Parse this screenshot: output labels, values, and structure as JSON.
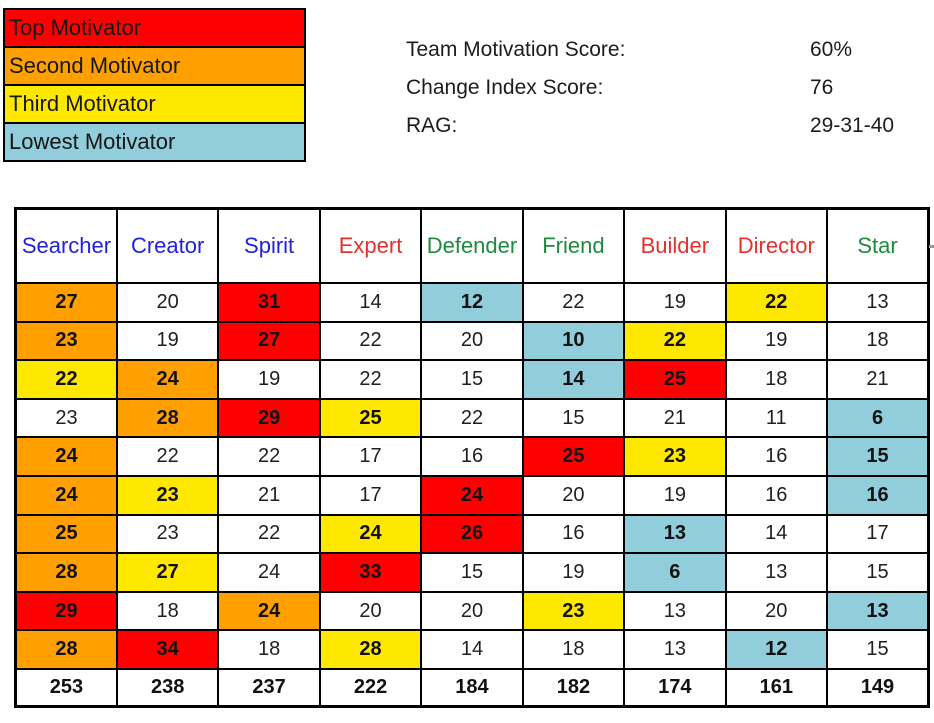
{
  "legend": {
    "items": [
      {
        "label": "Top Motivator",
        "color": "#FF0000"
      },
      {
        "label": "Second Motivator",
        "color": "#FFA000"
      },
      {
        "label": "Third Motivator",
        "color": "#FFE800"
      },
      {
        "label": "Lowest Motivator",
        "color": "#92CDDC"
      }
    ]
  },
  "scores": {
    "lines": [
      {
        "label": "Team Motivation Score:",
        "value": "60%"
      },
      {
        "label": "Change Index Score:",
        "value": "76"
      },
      {
        "label": "RAG:",
        "value": "29-31-40"
      }
    ]
  },
  "table": {
    "columns": [
      {
        "label": "Searcher",
        "color": "#2222DD"
      },
      {
        "label": "Creator",
        "color": "#2222DD"
      },
      {
        "label": "Spirit",
        "color": "#2222DD"
      },
      {
        "label": "Expert",
        "color": "#E23229"
      },
      {
        "label": "Defender",
        "color": "#1E8A3C"
      },
      {
        "label": "Friend",
        "color": "#1E8A3C"
      },
      {
        "label": "Builder",
        "color": "#E23229"
      },
      {
        "label": "Director",
        "color": "#E23229"
      },
      {
        "label": "Star",
        "color": "#1E8A3C"
      }
    ],
    "highlight_colors": {
      "red": "#FF0000",
      "orange": "#FFA000",
      "yellow": "#FFE800",
      "blue": "#92CDDC",
      "white": "#FFFFFF"
    },
    "rows": [
      [
        {
          "v": 27,
          "c": "orange"
        },
        {
          "v": 20,
          "c": "white"
        },
        {
          "v": 31,
          "c": "red"
        },
        {
          "v": 14,
          "c": "white"
        },
        {
          "v": 12,
          "c": "blue"
        },
        {
          "v": 22,
          "c": "white"
        },
        {
          "v": 19,
          "c": "white"
        },
        {
          "v": 22,
          "c": "yellow"
        },
        {
          "v": 13,
          "c": "white"
        }
      ],
      [
        {
          "v": 23,
          "c": "orange"
        },
        {
          "v": 19,
          "c": "white"
        },
        {
          "v": 27,
          "c": "red"
        },
        {
          "v": 22,
          "c": "white"
        },
        {
          "v": 20,
          "c": "white"
        },
        {
          "v": 10,
          "c": "blue"
        },
        {
          "v": 22,
          "c": "yellow"
        },
        {
          "v": 19,
          "c": "white"
        },
        {
          "v": 18,
          "c": "white"
        }
      ],
      [
        {
          "v": 22,
          "c": "yellow"
        },
        {
          "v": 24,
          "c": "orange"
        },
        {
          "v": 19,
          "c": "white"
        },
        {
          "v": 22,
          "c": "white"
        },
        {
          "v": 15,
          "c": "white"
        },
        {
          "v": 14,
          "c": "blue"
        },
        {
          "v": 25,
          "c": "red"
        },
        {
          "v": 18,
          "c": "white"
        },
        {
          "v": 21,
          "c": "white"
        }
      ],
      [
        {
          "v": 23,
          "c": "white"
        },
        {
          "v": 28,
          "c": "orange"
        },
        {
          "v": 29,
          "c": "red"
        },
        {
          "v": 25,
          "c": "yellow"
        },
        {
          "v": 22,
          "c": "white"
        },
        {
          "v": 15,
          "c": "white"
        },
        {
          "v": 21,
          "c": "white"
        },
        {
          "v": 11,
          "c": "white"
        },
        {
          "v": 6,
          "c": "blue"
        }
      ],
      [
        {
          "v": 24,
          "c": "orange"
        },
        {
          "v": 22,
          "c": "white"
        },
        {
          "v": 22,
          "c": "white"
        },
        {
          "v": 17,
          "c": "white"
        },
        {
          "v": 16,
          "c": "white"
        },
        {
          "v": 25,
          "c": "red"
        },
        {
          "v": 23,
          "c": "yellow"
        },
        {
          "v": 16,
          "c": "white"
        },
        {
          "v": 15,
          "c": "blue"
        }
      ],
      [
        {
          "v": 24,
          "c": "orange"
        },
        {
          "v": 23,
          "c": "yellow"
        },
        {
          "v": 21,
          "c": "white"
        },
        {
          "v": 17,
          "c": "white"
        },
        {
          "v": 24,
          "c": "red"
        },
        {
          "v": 20,
          "c": "white"
        },
        {
          "v": 19,
          "c": "white"
        },
        {
          "v": 16,
          "c": "white"
        },
        {
          "v": 16,
          "c": "blue"
        }
      ],
      [
        {
          "v": 25,
          "c": "orange"
        },
        {
          "v": 23,
          "c": "white"
        },
        {
          "v": 22,
          "c": "white"
        },
        {
          "v": 24,
          "c": "yellow"
        },
        {
          "v": 26,
          "c": "red"
        },
        {
          "v": 16,
          "c": "white"
        },
        {
          "v": 13,
          "c": "blue"
        },
        {
          "v": 14,
          "c": "white"
        },
        {
          "v": 17,
          "c": "white"
        }
      ],
      [
        {
          "v": 28,
          "c": "orange"
        },
        {
          "v": 27,
          "c": "yellow"
        },
        {
          "v": 24,
          "c": "white"
        },
        {
          "v": 33,
          "c": "red"
        },
        {
          "v": 15,
          "c": "white"
        },
        {
          "v": 19,
          "c": "white"
        },
        {
          "v": 6,
          "c": "blue"
        },
        {
          "v": 13,
          "c": "white"
        },
        {
          "v": 15,
          "c": "white"
        }
      ],
      [
        {
          "v": 29,
          "c": "red"
        },
        {
          "v": 18,
          "c": "white"
        },
        {
          "v": 24,
          "c": "orange"
        },
        {
          "v": 20,
          "c": "white"
        },
        {
          "v": 20,
          "c": "white"
        },
        {
          "v": 23,
          "c": "yellow"
        },
        {
          "v": 13,
          "c": "white"
        },
        {
          "v": 20,
          "c": "white"
        },
        {
          "v": 13,
          "c": "blue"
        }
      ],
      [
        {
          "v": 28,
          "c": "orange"
        },
        {
          "v": 34,
          "c": "red"
        },
        {
          "v": 18,
          "c": "white"
        },
        {
          "v": 28,
          "c": "yellow"
        },
        {
          "v": 14,
          "c": "white"
        },
        {
          "v": 18,
          "c": "white"
        },
        {
          "v": 13,
          "c": "white"
        },
        {
          "v": 12,
          "c": "blue"
        },
        {
          "v": 15,
          "c": "white"
        }
      ]
    ],
    "totals": [
      253,
      238,
      237,
      222,
      184,
      182,
      174,
      161,
      149
    ]
  }
}
